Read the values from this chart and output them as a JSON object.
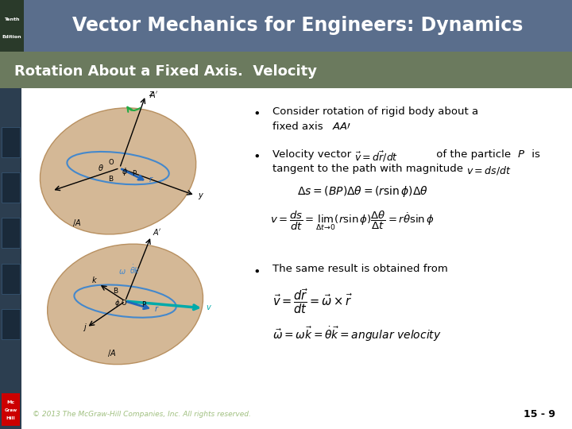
{
  "title_main": "Vector Mechanics for Engineers: Dynamics",
  "title_sub": "Rotation About a Fixed Axis.  Velocity",
  "edition_line1": "Tenth",
  "edition_line2": "Edition",
  "header_bg": "#5a6e8c",
  "subheader_bg": "#6b7a5e",
  "footer_text": "© 2013 The McGraw-Hill Companies, Inc. All rights reserved.",
  "page_num": "15 - 9",
  "bg_white": "#ffffff",
  "footer_text_color": "#a0c080"
}
